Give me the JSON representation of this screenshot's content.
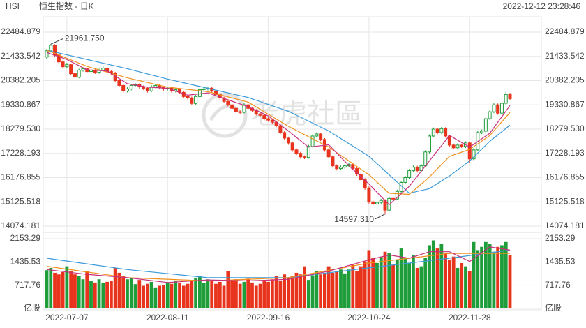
{
  "header": {
    "symbol": "HSI",
    "name": "恒生指数 - 日K",
    "timestamp": "2022-12-12 23:28:46"
  },
  "watermark": "老虎社區",
  "chart_data": [
    {
      "type": "candlestick",
      "categories": [
        null,
        null,
        null,
        null,
        null,
        "2022-07-07",
        null,
        null,
        null,
        null,
        null,
        null,
        null,
        null,
        null,
        null,
        null,
        null,
        null,
        null,
        null,
        null,
        null,
        null,
        null,
        null,
        null,
        null,
        null,
        null,
        "2022-08-11",
        null,
        null,
        null,
        null,
        null,
        null,
        null,
        null,
        null,
        null,
        null,
        null,
        null,
        null,
        null,
        null,
        null,
        null,
        null,
        null,
        null,
        null,
        null,
        null,
        "2022-09-16",
        null,
        null,
        null,
        null,
        null,
        null,
        null,
        null,
        null,
        null,
        null,
        null,
        null,
        null,
        null,
        null,
        null,
        null,
        null,
        null,
        null,
        null,
        null,
        null,
        "2022-10-24",
        null,
        null,
        null,
        null,
        null,
        null,
        null,
        null,
        null,
        null,
        null,
        null,
        null,
        null,
        null,
        null,
        null,
        null,
        null,
        null,
        null,
        null,
        null,
        null,
        "2022-11-28",
        null,
        null,
        null,
        null,
        null,
        null,
        null,
        null,
        null,
        null
      ],
      "open": [
        21400,
        21674,
        21914,
        21494,
        21193,
        20983,
        21073,
        20683,
        20532,
        20833,
        20893,
        20773,
        20833,
        20743,
        20833,
        20923,
        20773,
        20713,
        20382,
        20172,
        19932,
        20022,
        20172,
        20202,
        20112,
        20052,
        19932,
        20112,
        20172,
        20082,
        20022,
        20052,
        19932,
        19992,
        19872,
        19691,
        19631,
        19391,
        19691,
        19992,
        20022,
        20052,
        19932,
        19781,
        19631,
        19481,
        19331,
        19181,
        19030,
        19010,
        19331,
        19181,
        19090,
        18940,
        18880,
        18730,
        18670,
        18580,
        18430,
        18129,
        17889,
        17678,
        17378,
        17228,
        17078,
        17050,
        17528,
        17979,
        18069,
        17829,
        17378,
        17078,
        16687,
        16567,
        16627,
        16687,
        16747,
        16567,
        16327,
        16086,
        15726,
        15125,
        15035,
        15100,
        15185,
        14765,
        15275,
        15250,
        15576,
        15966,
        16177,
        16477,
        16627,
        16477,
        16687,
        17288,
        17979,
        18279,
        18129,
        18300,
        17979,
        17588,
        17468,
        17588,
        17528,
        17678,
        16988,
        17378,
        18129,
        18189,
        18730,
        19030,
        19331,
        18970,
        19400,
        19781
      ],
      "high": [
        21750,
        21961.75,
        21960,
        21560,
        21260,
        21150,
        21120,
        20740,
        20900,
        20960,
        20950,
        20900,
        20890,
        20900,
        20990,
        20980,
        20820,
        20760,
        20430,
        20220,
        20090,
        20240,
        20270,
        20260,
        20170,
        20110,
        20180,
        20240,
        20230,
        20140,
        20120,
        20110,
        20060,
        20050,
        19930,
        19750,
        19690,
        19760,
        20060,
        20090,
        20120,
        20110,
        19990,
        19840,
        19690,
        19540,
        19390,
        19240,
        19090,
        19400,
        19390,
        19240,
        19150,
        19000,
        18940,
        18790,
        18730,
        18640,
        18490,
        18190,
        17950,
        17740,
        17440,
        17290,
        17140,
        17600,
        18050,
        18140,
        18120,
        17890,
        17440,
        17140,
        16750,
        16700,
        16760,
        16820,
        16800,
        16620,
        16390,
        16150,
        15790,
        15190,
        15170,
        15260,
        15240,
        15350,
        15340,
        15650,
        16040,
        16250,
        16550,
        16700,
        16690,
        16760,
        17360,
        18050,
        18350,
        18340,
        18370,
        18360,
        18040,
        17650,
        17660,
        17650,
        17750,
        17740,
        17450,
        18200,
        18260,
        18800,
        19100,
        19400,
        19390,
        19470,
        19900,
        19850
      ],
      "low": [
        21320,
        21620,
        21420,
        21120,
        20900,
        20910,
        20610,
        20460,
        20480,
        20770,
        20700,
        20700,
        20670,
        20680,
        20770,
        20700,
        20640,
        20310,
        20100,
        19860,
        19870,
        19960,
        20110,
        20040,
        19980,
        19860,
        19880,
        20050,
        20010,
        19950,
        19960,
        19860,
        19870,
        19800,
        19620,
        19560,
        19320,
        19340,
        19640,
        19930,
        19960,
        19860,
        19710,
        19560,
        19410,
        19260,
        19110,
        18960,
        18940,
        18960,
        19110,
        19020,
        18870,
        18810,
        18660,
        18600,
        18510,
        18360,
        18060,
        17820,
        17600,
        17300,
        17150,
        17000,
        16980,
        17000,
        17480,
        17910,
        17760,
        17300,
        17000,
        16610,
        16490,
        16500,
        16560,
        16620,
        16490,
        16250,
        16010,
        15650,
        15050,
        14960,
        14960,
        15030,
        14597.31,
        14700,
        15180,
        15200,
        15520,
        15900,
        16100,
        16400,
        16400,
        16410,
        16620,
        17230,
        17920,
        18060,
        18060,
        17910,
        17510,
        17400,
        17400,
        17460,
        17460,
        16830,
        16930,
        17320,
        18060,
        18130,
        18670,
        18970,
        18900,
        18910,
        19340,
        19530
      ],
      "close": [
        21674,
        21914,
        21494,
        21193,
        20983,
        21073,
        20683,
        20532,
        20833,
        20893,
        20773,
        20833,
        20743,
        20833,
        20923,
        20773,
        20713,
        20382,
        20172,
        19932,
        20022,
        20172,
        20202,
        20112,
        20052,
        19932,
        20112,
        20172,
        20082,
        20022,
        20052,
        19932,
        19992,
        19872,
        19691,
        19631,
        19391,
        19691,
        19992,
        20022,
        20052,
        19932,
        19781,
        19631,
        19481,
        19331,
        19181,
        19030,
        19010,
        19331,
        19181,
        19090,
        18940,
        18880,
        18730,
        18670,
        18580,
        18430,
        18129,
        17889,
        17678,
        17378,
        17228,
        17078,
        17050,
        17528,
        17979,
        18069,
        17829,
        17378,
        17078,
        16687,
        16567,
        16627,
        16687,
        16747,
        16567,
        16327,
        16086,
        15726,
        15125,
        15035,
        15100,
        15185,
        14765,
        15275,
        15250,
        15576,
        15966,
        16177,
        16477,
        16627,
        16477,
        16687,
        17288,
        17979,
        18279,
        18129,
        18300,
        17979,
        17588,
        17468,
        17588,
        17528,
        17678,
        16988,
        17378,
        18129,
        18189,
        18730,
        19030,
        19331,
        18970,
        19400,
        19781,
        19600
      ],
      "up_color": "#1f9d3a",
      "down_color": "#e8341c",
      "ylim": [
        14074.181,
        22484.879
      ],
      "yticks": [
        14074.181,
        15125.518,
        16176.855,
        17228.193,
        {
          "value": 18279.53,
          "label": "18279.530"
        },
        19330.867,
        20382.205,
        21433.542,
        22484.879
      ],
      "grid": true,
      "max_label": "21961.750",
      "min_label": "14597.310",
      "lines": [
        {
          "color": "#3a9ad9",
          "x": [
            0,
            10,
            20,
            30,
            40,
            50,
            60,
            70,
            80,
            85,
            90,
            95,
            100,
            105,
            110,
            115
          ],
          "values": [
            21700,
            21300,
            20900,
            20450,
            20050,
            19650,
            19050,
            18200,
            17100,
            16300,
            15500,
            15700,
            16250,
            16900,
            17750,
            18450
          ]
        },
        {
          "color": "#f0901e",
          "x": [
            0,
            10,
            20,
            30,
            40,
            50,
            60,
            70,
            80,
            85,
            90,
            95,
            100,
            105,
            110,
            115
          ],
          "values": [
            21700,
            21000,
            20500,
            20100,
            19900,
            19450,
            18400,
            17500,
            16300,
            15500,
            15450,
            16200,
            17100,
            17400,
            18000,
            19000
          ]
        },
        {
          "color": "#c8307c",
          "x": [
            0,
            5,
            10,
            15,
            20,
            25,
            30,
            35,
            40,
            45,
            50,
            55,
            60,
            65,
            70,
            75,
            80,
            85,
            90,
            95,
            100,
            105,
            110,
            115
          ],
          "values": [
            21600,
            21300,
            20850,
            20800,
            20250,
            20100,
            20050,
            19750,
            19850,
            19550,
            19250,
            18850,
            18200,
            17500,
            17600,
            16700,
            15900,
            15000,
            15800,
            16900,
            18000,
            17500,
            18100,
            19300
          ]
        }
      ]
    },
    {
      "type": "bar",
      "values": [
        1180,
        1250,
        1100,
        1050,
        1120,
        1300,
        1150,
        1050,
        1000,
        900,
        1150,
        850,
        800,
        900,
        780,
        820,
        850,
        1250,
        1100,
        1000,
        900,
        950,
        750,
        880,
        700,
        760,
        820,
        650,
        700,
        720,
        800,
        760,
        840,
        780,
        700,
        760,
        880,
        950,
        1000,
        780,
        900,
        850,
        760,
        820,
        700,
        1150,
        880,
        900,
        760,
        820,
        920,
        800,
        700,
        760,
        880,
        820,
        900,
        1000,
        850,
        1050,
        950,
        1000,
        1100,
        1050,
        1300,
        880,
        1020,
        1150,
        1050,
        1100,
        1300,
        1100,
        1150,
        1200,
        1080,
        1200,
        1350,
        1150,
        1300,
        1450,
        1800,
        1550,
        1400,
        1600,
        1750,
        1700,
        1350,
        1500,
        1850,
        1550,
        1400,
        1650,
        1250,
        1300,
        1550,
        1950,
        2100,
        1850,
        2000,
        1700,
        1500,
        1600,
        1250,
        1400,
        1300,
        1150,
        2050,
        1800,
        1900,
        2050,
        2000,
        1750,
        1900,
        1950,
        2050,
        1650
      ],
      "ylim": [
        0,
        2153.29
      ],
      "yticks": [
        {
          "value": 0,
          "label": "亿股"
        },
        717.76,
        1435.53,
        2153.29
      ],
      "grid": true,
      "lines": [
        {
          "color": "#3a9ad9",
          "x": [
            0,
            20,
            40,
            60,
            80,
            100,
            115
          ],
          "values": [
            1550,
            1200,
            950,
            950,
            1250,
            1550,
            1800
          ]
        },
        {
          "color": "#f0901e",
          "x": [
            0,
            20,
            40,
            60,
            80,
            100,
            115
          ],
          "values": [
            1300,
            950,
            850,
            950,
            1400,
            1700,
            1700
          ]
        },
        {
          "color": "#c8307c",
          "x": [
            0,
            10,
            20,
            30,
            40,
            50,
            60,
            70,
            80,
            85,
            90,
            95,
            100,
            105,
            110,
            115
          ],
          "values": [
            1200,
            1050,
            950,
            800,
            880,
            850,
            900,
            1150,
            1500,
            1650,
            1550,
            1750,
            1750,
            1450,
            1900,
            1800
          ]
        }
      ]
    }
  ]
}
